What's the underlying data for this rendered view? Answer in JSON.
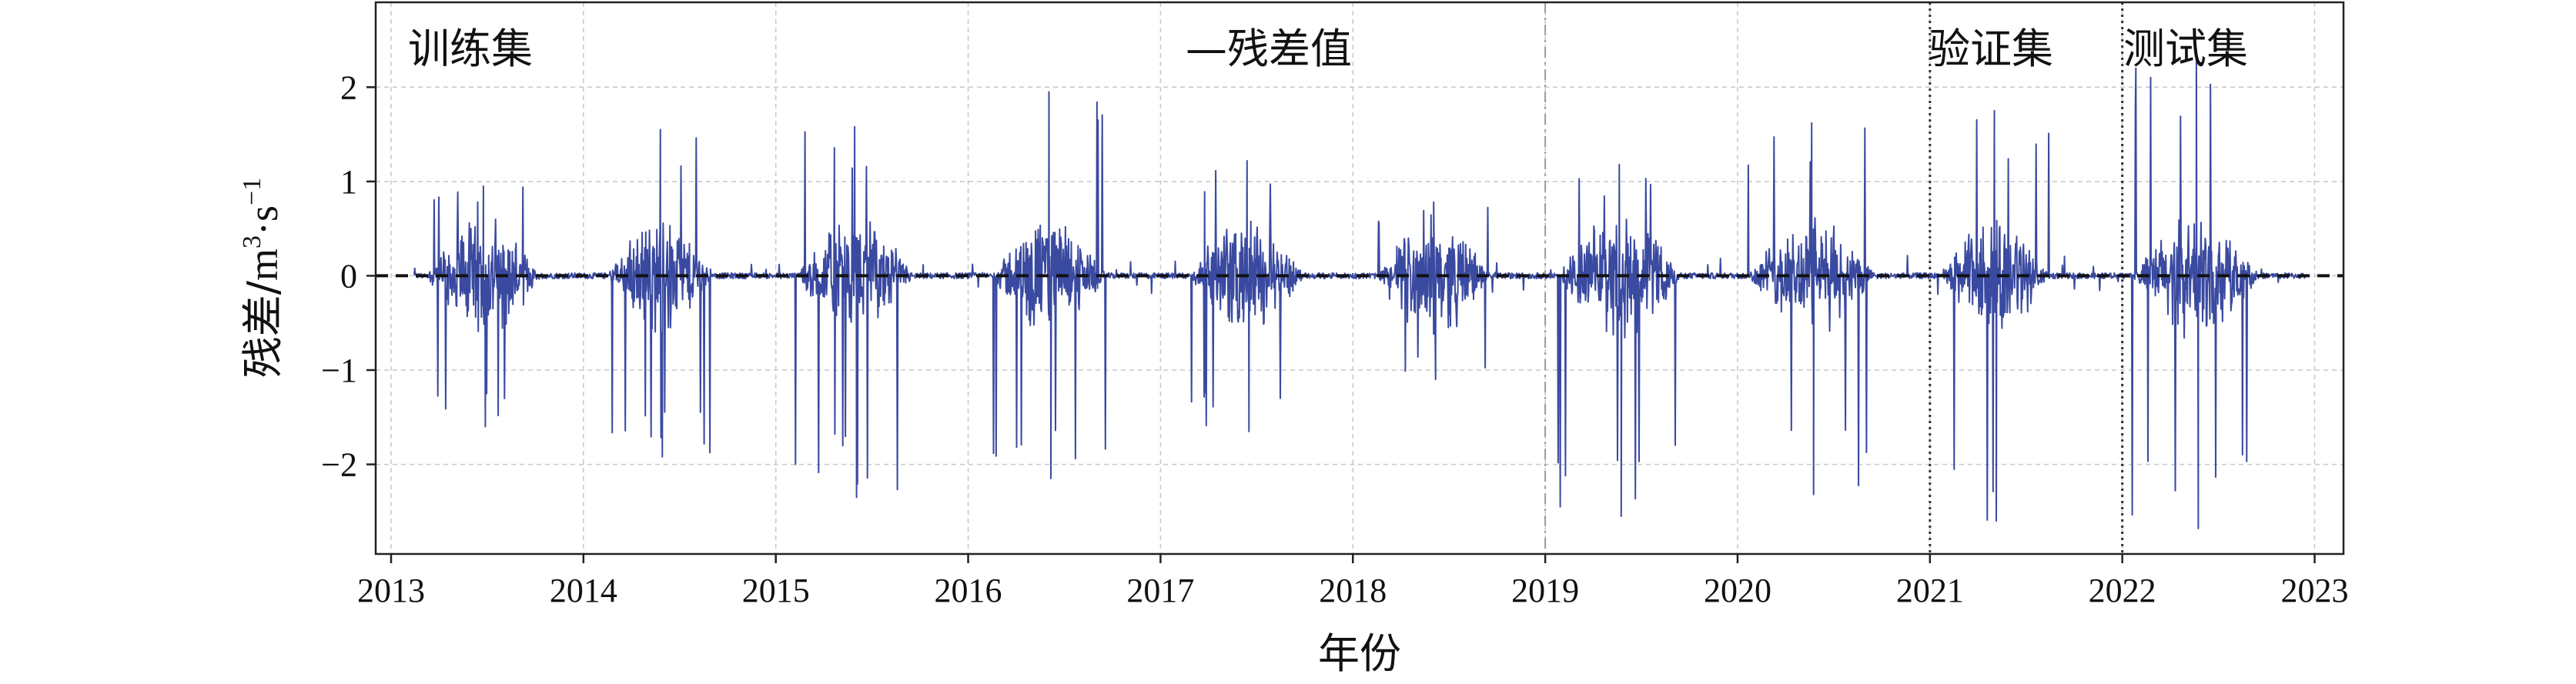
{
  "chart_data": {
    "type": "line",
    "title": "",
    "xlabel": "年份",
    "ylabel_cn": "残差/",
    "ylabel_unit": "m",
    "ylabel_sup1": "3",
    "ylabel_mid": "·s",
    "ylabel_sup2": "−1",
    "xlim": [
      2012.92,
      2023.15
    ],
    "ylim": [
      -2.95,
      2.9
    ],
    "x_ticks": [
      2013,
      2014,
      2015,
      2016,
      2017,
      2018,
      2019,
      2020,
      2021,
      2022,
      2023
    ],
    "x_tick_labels": [
      "2013",
      "2014",
      "2015",
      "2016",
      "2017",
      "2018",
      "2019",
      "2020",
      "2021",
      "2022",
      "2023"
    ],
    "y_ticks": [
      -2,
      -1,
      0,
      1,
      2
    ],
    "y_tick_labels": [
      "−2",
      "−1",
      "0",
      "1",
      "2"
    ],
    "grid": true,
    "zero_line": 0,
    "split_lines": [
      2021.0,
      2022.0
    ],
    "trained_line": 2019.0,
    "series": [
      {
        "name": "残差值",
        "color": "#3a4aa0",
        "x_start": 2013.12,
        "x_end": 2022.95,
        "bursts": [
          {
            "start": 2013.18,
            "end": 2013.78,
            "max": 0.95,
            "min": -1.6
          },
          {
            "start": 2014.12,
            "end": 2014.68,
            "max": 1.55,
            "min": -1.92
          },
          {
            "start": 2015.1,
            "end": 2015.72,
            "max": 1.58,
            "min": -2.35
          },
          {
            "start": 2016.12,
            "end": 2016.72,
            "max": 1.95,
            "min": -2.15
          },
          {
            "start": 2017.15,
            "end": 2017.75,
            "max": 1.22,
            "min": -1.65
          },
          {
            "start": 2018.12,
            "end": 2018.72,
            "max": 0.78,
            "min": -1.1
          },
          {
            "start": 2019.05,
            "end": 2019.72,
            "max": 1.18,
            "min": -2.55
          },
          {
            "start": 2020.05,
            "end": 2020.72,
            "max": 1.62,
            "min": -2.32
          },
          {
            "start": 2021.05,
            "end": 2021.62,
            "max": 1.75,
            "min": -2.6
          },
          {
            "start": 2022.05,
            "end": 2022.72,
            "max": 2.4,
            "min": -2.68
          }
        ]
      }
    ],
    "annotations": {
      "train": "训练集",
      "legend": "—残差值",
      "val": "验证集",
      "test": "测试集"
    }
  }
}
